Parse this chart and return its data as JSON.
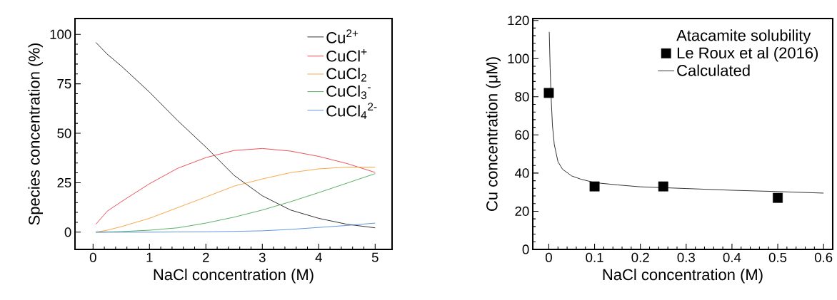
{
  "chart_data": [
    {
      "type": "line",
      "xlabel": "NaCl concentration (M)",
      "ylabel": "Species concentration (%)",
      "xlim": [
        -0.32,
        5.3
      ],
      "ylim": [
        -8.7,
        108
      ],
      "xticks": [
        0,
        1,
        2,
        3,
        4,
        5
      ],
      "yticks": [
        0,
        25,
        50,
        75,
        100
      ],
      "legend": "top right",
      "x": [
        0.05,
        0.25,
        0.5,
        1,
        1.5,
        2,
        2.5,
        3,
        3.5,
        4,
        4.5,
        5
      ],
      "series": [
        {
          "name": "Cu$^{2+}$",
          "color": "#000000",
          "values": [
            95.9,
            90,
            84,
            70.8,
            56.4,
            43,
            28.7,
            18.4,
            11.2,
            7,
            4,
            2.2
          ]
        },
        {
          "name": "CuCl$^{+}$",
          "color": "#e8262d",
          "values": [
            4,
            10.6,
            15.4,
            24.5,
            32.3,
            37.7,
            41.3,
            42.3,
            41,
            38.3,
            34.7,
            30.2
          ]
        },
        {
          "name": "CuCl$_{2}$",
          "color": "#f7901e",
          "values": [
            0,
            1,
            2.8,
            7,
            12.4,
            17.8,
            23.3,
            26.9,
            30.1,
            32,
            32.9,
            32.9
          ]
        },
        {
          "name": "CuCl$_{3}$$^{-}$",
          "color": "#2e9a43",
          "values": [
            0,
            0.1,
            0.3,
            1,
            2.2,
            4.6,
            7.6,
            11.2,
            15.4,
            20,
            24.8,
            29.6
          ]
        },
        {
          "name": "CuCl$_{4}$$^{2-}$",
          "color": "#3a7bd5",
          "values": [
            0,
            0,
            0,
            0,
            0.1,
            0.2,
            0.4,
            0.7,
            1.4,
            2.4,
            3.4,
            4.6
          ]
        }
      ]
    },
    {
      "type": "scatter",
      "xlabel": "NaCl concentration (M)",
      "ylabel": "Cu concentration (μM)",
      "xlim": [
        -0.035,
        0.62
      ],
      "ylim": [
        0,
        121
      ],
      "xticks": [
        0,
        0.1,
        0.2,
        0.3,
        0.4,
        0.5,
        0.6
      ],
      "yticks": [
        0,
        20,
        40,
        60,
        80,
        100,
        120
      ],
      "legend": "top right",
      "legend_title": "Atacamite solubility",
      "series": [
        {
          "name": "Le Roux et al (2016)",
          "type": "scatter",
          "marker": "square",
          "color": "#000000",
          "x": [
            0,
            0.1,
            0.25,
            0.5
          ],
          "values": [
            82,
            33,
            33,
            27
          ]
        },
        {
          "name": "Calculated",
          "type": "line",
          "marker": "none",
          "color": "#000000",
          "x": [
            0.001,
            0.003,
            0.005,
            0.008,
            0.012,
            0.02,
            0.03,
            0.05,
            0.07,
            0.1,
            0.15,
            0.2,
            0.3,
            0.4,
            0.5,
            0.6
          ],
          "values": [
            114,
            95,
            80,
            65,
            55,
            46,
            42,
            38.5,
            36.8,
            35,
            33.8,
            32.8,
            31.9,
            31,
            30.3,
            29.5
          ]
        }
      ]
    }
  ]
}
